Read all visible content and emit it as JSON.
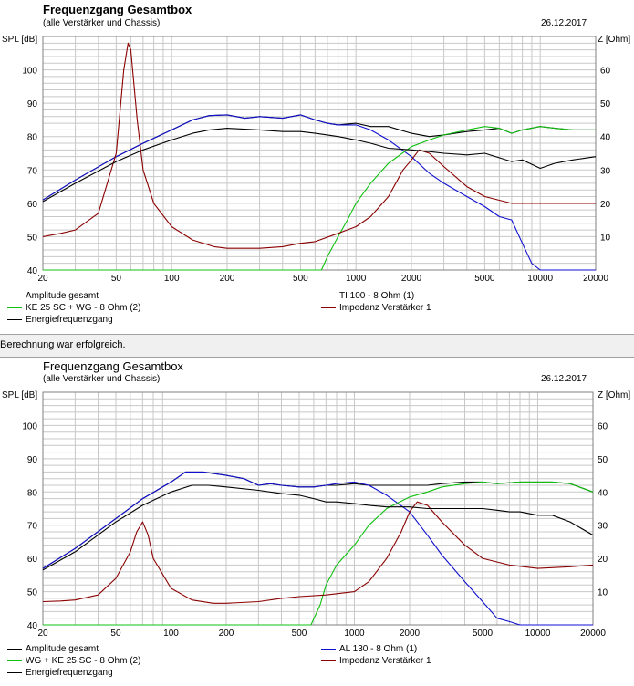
{
  "status": {
    "message": "Berechnung war erfolgreich."
  },
  "axes": {
    "left_label": "SPL [dB]",
    "right_label": "Z [Ohm]",
    "x_ticks": [
      "20",
      "50",
      "100",
      "200",
      "500",
      "1000",
      "2000",
      "5000",
      "10000",
      "20000"
    ],
    "y_ticks_left": [
      "40",
      "50",
      "60",
      "70",
      "80",
      "90",
      "100"
    ],
    "y_ticks_right": [
      "10",
      "20",
      "30",
      "40",
      "50",
      "60"
    ]
  },
  "colors": {
    "black": "#000000",
    "blue": "#1010d0",
    "green": "#10c010",
    "red": "#8b0000",
    "grid": "#c8c8c8"
  },
  "chart_data": [
    {
      "type": "line",
      "title": "Frequenzgang Gesamtbox",
      "subtitle": "(alle Verstärker und Chassis)",
      "date": "26.12.2017",
      "xlabel": "",
      "ylabel": "SPL [dB]",
      "y2label": "Z [Ohm]",
      "xscale": "log",
      "xlim": [
        20,
        20000
      ],
      "ylim": [
        40,
        110
      ],
      "y2lim": [
        0,
        70
      ],
      "grid": true,
      "series": [
        {
          "name": "Amplitude gesamt",
          "color": "black",
          "axis": "left",
          "x": [
            20,
            30,
            50,
            70,
            100,
            130,
            160,
            200,
            250,
            300,
            400,
            500,
            600,
            700,
            800,
            1000,
            1200,
            1500,
            2000,
            2500,
            3000,
            4000,
            5000,
            6000,
            7000,
            8000,
            10000,
            12000,
            15000,
            20000
          ],
          "y": [
            61,
            67,
            74,
            78,
            82,
            85,
            86.3,
            86.5,
            85.5,
            86,
            85.5,
            86.5,
            85,
            84,
            83.5,
            84,
            83,
            83,
            81,
            80,
            80.5,
            81.5,
            82,
            82.5,
            81,
            82,
            83,
            82.5,
            82,
            82
          ]
        },
        {
          "name": "TI 100 - 8 Ohm (1)",
          "color": "blue",
          "axis": "left",
          "x": [
            20,
            30,
            50,
            70,
            100,
            130,
            160,
            200,
            250,
            300,
            400,
            500,
            600,
            700,
            800,
            1000,
            1200,
            1500,
            2000,
            2500,
            3000,
            4000,
            5000,
            6000,
            7000,
            8000,
            9000,
            10000,
            12000,
            15000,
            20000
          ],
          "y": [
            61,
            67,
            74,
            78,
            82,
            85,
            86.3,
            86.5,
            85.5,
            86,
            85.5,
            86.5,
            85,
            84,
            83.5,
            83.5,
            82,
            79,
            74,
            69,
            66,
            62,
            59,
            56,
            55,
            48,
            42,
            40,
            40,
            40,
            40
          ]
        },
        {
          "name": "KE 25 SC + WG - 8 Ohm (2)",
          "color": "green",
          "axis": "left",
          "x": [
            20,
            100,
            300,
            650,
            700,
            800,
            900,
            1000,
            1200,
            1500,
            2000,
            2500,
            3000,
            4000,
            5000,
            6000,
            7000,
            8000,
            10000,
            12000,
            15000,
            20000
          ],
          "y": [
            40,
            40,
            40,
            40,
            44,
            50,
            55,
            60,
            66,
            72,
            77,
            79,
            80.5,
            82,
            83,
            82.5,
            81,
            82,
            83,
            82.5,
            82,
            82
          ]
        },
        {
          "name": "Impedanz Verstärker 1",
          "color": "red",
          "axis": "right",
          "x": [
            20,
            25,
            30,
            40,
            50,
            55,
            58,
            60,
            65,
            70,
            80,
            100,
            130,
            170,
            200,
            250,
            300,
            400,
            500,
            600,
            800,
            1000,
            1200,
            1500,
            1800,
            2000,
            2200,
            2500,
            3000,
            4000,
            5000,
            7000,
            10000,
            15000,
            20000
          ],
          "y": [
            10,
            11,
            12,
            17,
            35,
            60,
            68,
            66,
            45,
            30,
            20,
            13,
            9,
            7,
            6.5,
            6.5,
            6.5,
            7,
            8,
            8.5,
            11,
            13,
            16,
            22,
            30,
            33,
            36,
            35,
            31,
            25,
            22,
            20,
            20,
            20,
            20
          ]
        },
        {
          "name": "Energiefrequenzgang",
          "color": "black",
          "axis": "left",
          "x": [
            20,
            30,
            50,
            70,
            100,
            130,
            160,
            200,
            300,
            400,
            500,
            600,
            700,
            800,
            1000,
            1200,
            1500,
            2000,
            2500,
            3000,
            4000,
            5000,
            7000,
            8000,
            10000,
            12000,
            15000,
            20000
          ],
          "y": [
            60.5,
            66,
            72.5,
            76,
            79,
            81,
            82,
            82.5,
            82,
            81.5,
            81.5,
            81,
            80.5,
            80,
            79,
            78,
            76.5,
            76,
            75.5,
            75,
            74.5,
            75,
            72.5,
            73,
            70.5,
            72,
            73,
            74
          ]
        }
      ]
    },
    {
      "type": "line",
      "title": "Frequenzgang Gesamtbox",
      "subtitle": "(alle Verstärker und Chassis)",
      "date": "26.12.2017",
      "xlabel": "",
      "ylabel": "SPL [dB]",
      "y2label": "Z [Ohm]",
      "xscale": "log",
      "xlim": [
        20,
        20000
      ],
      "ylim": [
        40,
        110
      ],
      "y2lim": [
        0,
        70
      ],
      "grid": true,
      "series": [
        {
          "name": "Amplitude gesamt",
          "color": "black",
          "axis": "left",
          "x": [
            20,
            30,
            50,
            70,
            100,
            120,
            150,
            200,
            250,
            300,
            350,
            400,
            500,
            600,
            700,
            800,
            1000,
            1200,
            1500,
            2000,
            2500,
            3000,
            4000,
            5000,
            6000,
            8000,
            10000,
            12000,
            15000,
            20000
          ],
          "y": [
            57,
            63,
            72,
            78,
            83,
            86,
            86,
            85,
            84,
            82,
            82.5,
            82,
            81.5,
            81.5,
            82,
            82,
            82.5,
            82,
            82,
            82,
            82,
            82.5,
            83,
            83,
            82.5,
            83,
            83,
            83,
            82.5,
            80
          ]
        },
        {
          "name": "AL 130 - 8 Ohm (1)",
          "color": "blue",
          "axis": "left",
          "x": [
            20,
            30,
            50,
            70,
            100,
            120,
            150,
            200,
            250,
            300,
            350,
            400,
            500,
            600,
            700,
            800,
            1000,
            1200,
            1500,
            2000,
            2500,
            3000,
            4000,
            5000,
            6000,
            7000,
            8000,
            10000,
            12000,
            15000,
            20000
          ],
          "y": [
            57,
            63,
            72,
            78,
            83,
            86,
            86,
            85,
            84,
            82,
            82.5,
            82,
            81.5,
            81.5,
            82,
            82.5,
            83,
            82,
            79,
            74,
            67,
            61,
            53,
            47,
            42,
            41,
            40,
            40,
            40,
            40,
            40
          ]
        },
        {
          "name": "WG + KE 25 SC - 8 Ohm (2)",
          "color": "green",
          "axis": "left",
          "x": [
            20,
            100,
            300,
            580,
            650,
            700,
            800,
            1000,
            1200,
            1500,
            2000,
            2500,
            3000,
            4000,
            5000,
            6000,
            8000,
            10000,
            12000,
            15000,
            20000
          ],
          "y": [
            40,
            40,
            40,
            40,
            46,
            52,
            58,
            64,
            70,
            75,
            78.5,
            80,
            81.5,
            82.5,
            83,
            82.5,
            83,
            83,
            83,
            82.5,
            80
          ]
        },
        {
          "name": "Impedanz Verstärker 1",
          "color": "red",
          "axis": "right",
          "x": [
            20,
            25,
            30,
            40,
            50,
            60,
            65,
            70,
            75,
            80,
            100,
            130,
            170,
            200,
            300,
            400,
            500,
            700,
            1000,
            1200,
            1500,
            1800,
            2000,
            2200,
            2500,
            3000,
            4000,
            5000,
            7000,
            10000,
            15000,
            20000
          ],
          "y": [
            7,
            7.2,
            7.5,
            9,
            14,
            22,
            28,
            31,
            27,
            20,
            11,
            7.5,
            6.5,
            6.5,
            7,
            8,
            8.5,
            9,
            10,
            13,
            20,
            28,
            34,
            37,
            36,
            31,
            24,
            20,
            18,
            17,
            17.5,
            18
          ]
        },
        {
          "name": "Energiefrequenzgang",
          "color": "black",
          "axis": "left",
          "x": [
            20,
            30,
            50,
            70,
            100,
            130,
            160,
            200,
            300,
            400,
            500,
            600,
            700,
            800,
            1000,
            1200,
            1500,
            2000,
            2500,
            3000,
            4000,
            5000,
            6000,
            7000,
            8000,
            10000,
            12000,
            15000,
            20000
          ],
          "y": [
            56.5,
            62,
            71,
            76,
            80,
            82,
            82,
            81.5,
            80.5,
            79.5,
            79,
            78,
            77,
            77,
            76.5,
            76,
            75.5,
            75.5,
            75,
            75,
            75,
            75,
            74.5,
            74,
            74,
            73,
            73,
            71,
            67
          ]
        }
      ]
    }
  ]
}
